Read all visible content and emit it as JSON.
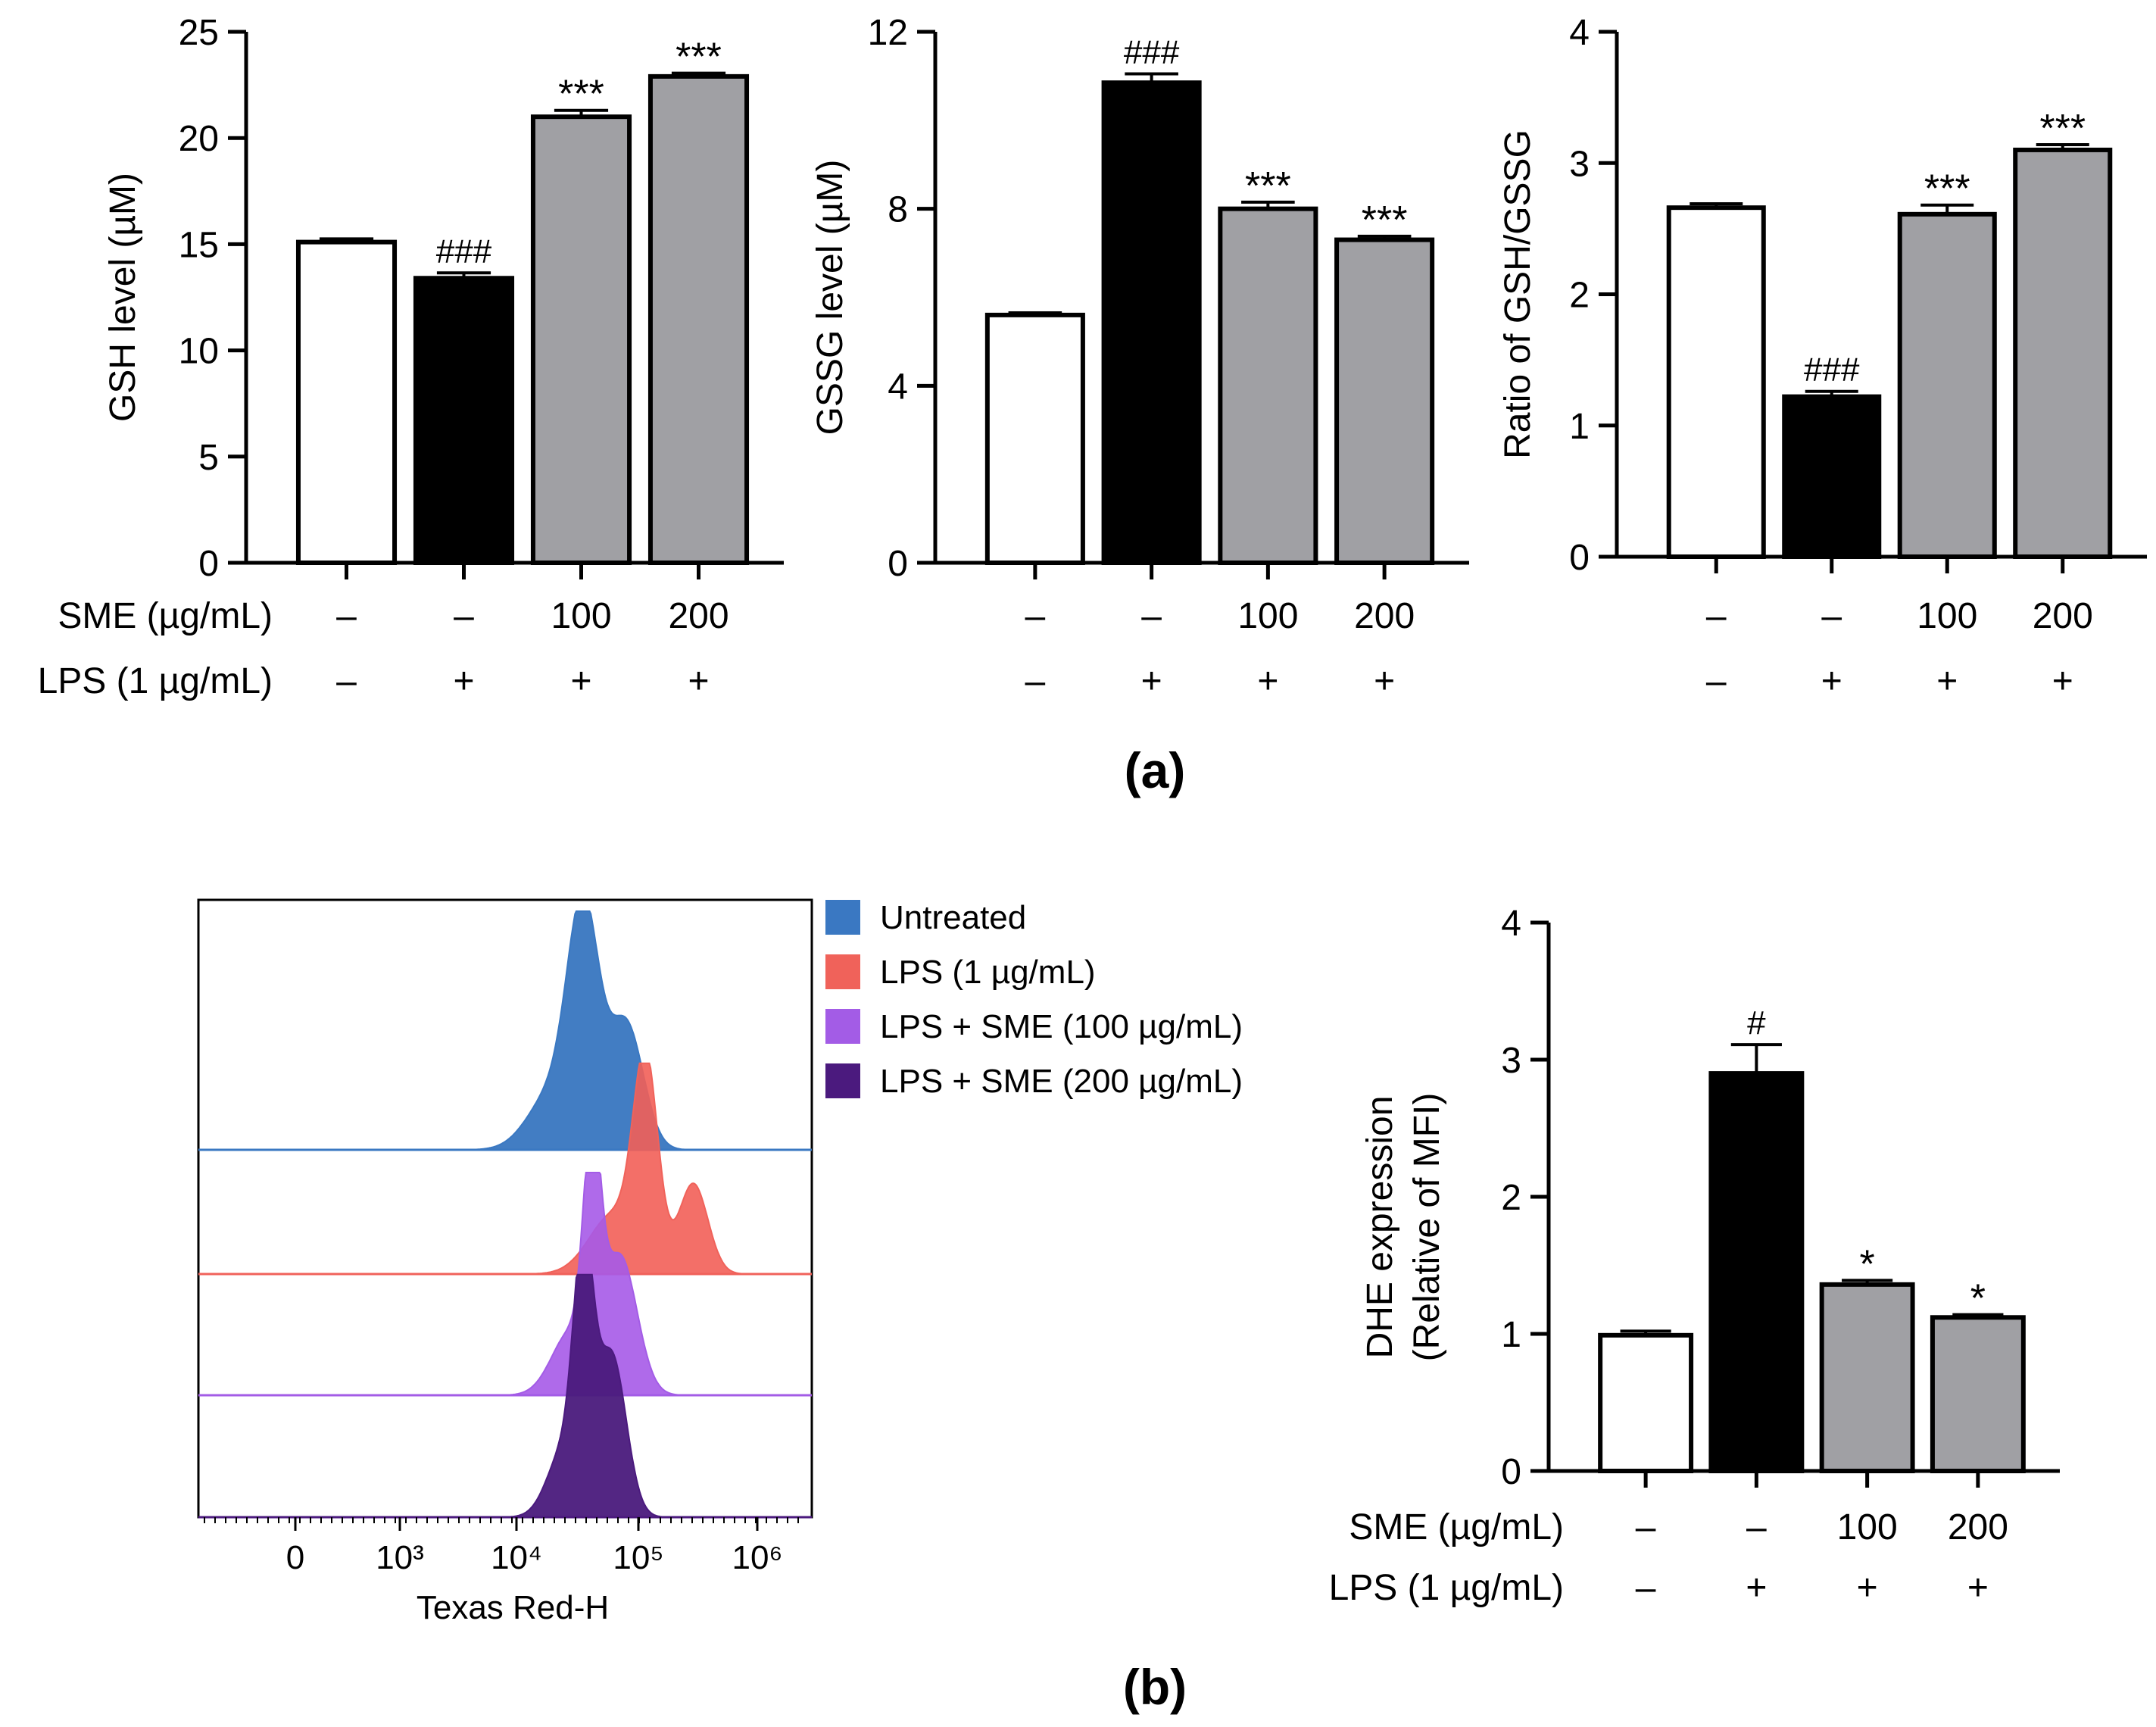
{
  "panel_labels": {
    "a": "(a)",
    "b": "(b)"
  },
  "treatment_rows": {
    "sme_label": "SME (µg/mL)",
    "lps_label": "LPS (1 µg/mL)",
    "sme_values": [
      "–",
      "–",
      "100",
      "200"
    ],
    "lps_values": [
      "–",
      "+",
      "+",
      "+"
    ]
  },
  "histogram": {
    "xlabel": "Texas Red-H",
    "ticks": [
      "0",
      "10³",
      "10⁴",
      "10⁵",
      "10⁶"
    ],
    "legend": [
      "Untreated",
      "LPS (1 µg/mL)",
      "LPS + SME (100 µg/mL)",
      "LPS + SME (200 µg/mL)"
    ],
    "colors": [
      "#3a78c2",
      "#f0625a",
      "#a35ce6",
      "#4b1a7e"
    ]
  },
  "chart_data": [
    {
      "type": "bar",
      "title": "",
      "ylabel": "GSH level (µM)",
      "ylim": [
        0,
        25
      ],
      "yticks": [
        0,
        5,
        10,
        15,
        20,
        25
      ],
      "values": [
        15.1,
        13.4,
        21.0,
        22.9
      ],
      "errors": [
        0.15,
        0.25,
        0.3,
        0.15
      ],
      "significance": [
        "",
        "###",
        "***",
        "***"
      ],
      "bar_colors": [
        "#ffffff",
        "#000000",
        "#a0a0a4",
        "#a0a0a4"
      ]
    },
    {
      "type": "bar",
      "title": "",
      "ylabel": "GSSG level (µM)",
      "ylim": [
        0,
        12
      ],
      "yticks": [
        0,
        4,
        8,
        12
      ],
      "values": [
        5.6,
        10.85,
        8.0,
        7.3
      ],
      "errors": [
        0.05,
        0.2,
        0.15,
        0.08
      ],
      "significance": [
        "",
        "###",
        "***",
        "***"
      ],
      "bar_colors": [
        "#ffffff",
        "#000000",
        "#a0a0a4",
        "#a0a0a4"
      ]
    },
    {
      "type": "bar",
      "title": "",
      "ylabel": "Ratio of GSH/GSSG",
      "ylim": [
        0,
        4
      ],
      "yticks": [
        0,
        1,
        2,
        3,
        4
      ],
      "values": [
        2.66,
        1.22,
        2.61,
        3.1
      ],
      "errors": [
        0.03,
        0.04,
        0.07,
        0.04
      ],
      "significance": [
        "",
        "###",
        "***",
        "***"
      ],
      "bar_colors": [
        "#ffffff",
        "#000000",
        "#a0a0a4",
        "#a0a0a4"
      ]
    },
    {
      "type": "bar",
      "title": "",
      "ylabel": "DHE expression",
      "ylabel2": "(Relative of MFI)",
      "ylim": [
        0,
        4
      ],
      "yticks": [
        0,
        1,
        2,
        3,
        4
      ],
      "values": [
        0.99,
        2.9,
        1.36,
        1.12
      ],
      "errors": [
        0.03,
        0.21,
        0.03,
        0.02
      ],
      "significance": [
        "",
        "#",
        "*",
        "*"
      ],
      "bar_colors": [
        "#ffffff",
        "#000000",
        "#a0a0a4",
        "#a0a0a4"
      ]
    }
  ]
}
